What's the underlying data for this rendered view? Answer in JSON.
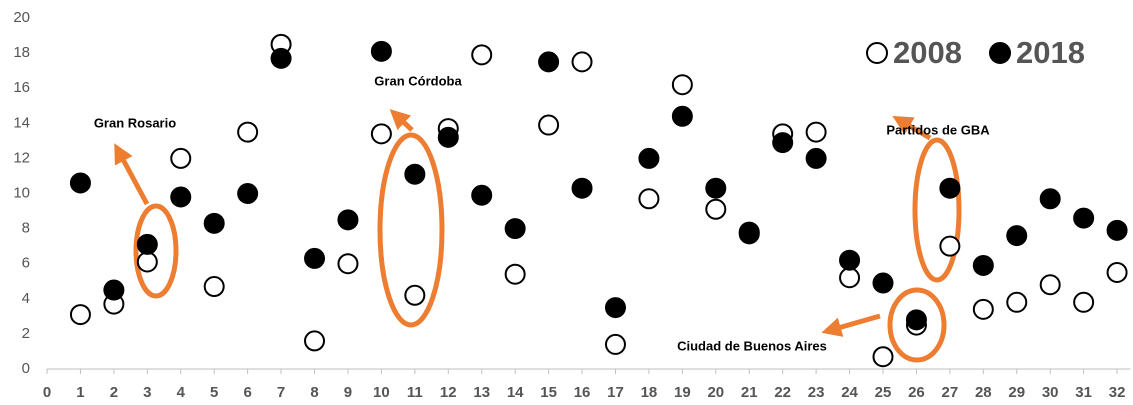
{
  "chart_data": {
    "type": "scatter",
    "x": [
      1,
      2,
      3,
      4,
      5,
      6,
      7,
      8,
      9,
      10,
      11,
      12,
      13,
      14,
      15,
      16,
      17,
      18,
      19,
      20,
      21,
      22,
      23,
      24,
      25,
      26,
      27,
      28,
      29,
      30,
      31,
      32
    ],
    "series": [
      {
        "name": "2008",
        "color": "#000000",
        "marker": "open",
        "values": [
          3.1,
          3.7,
          6.1,
          12.0,
          4.7,
          13.5,
          18.5,
          1.6,
          6.0,
          13.4,
          4.2,
          13.7,
          17.9,
          5.4,
          13.9,
          17.5,
          1.4,
          9.7,
          16.2,
          9.1,
          7.7,
          13.4,
          13.5,
          5.2,
          0.7,
          2.5,
          7.0,
          3.4,
          3.8,
          4.8,
          3.8,
          5.5
        ]
      },
      {
        "name": "2018",
        "color": "#000000",
        "marker": "filled",
        "values": [
          10.6,
          4.5,
          7.1,
          9.8,
          8.3,
          10.0,
          17.7,
          6.3,
          8.5,
          18.1,
          11.1,
          13.2,
          9.9,
          8.0,
          17.5,
          10.3,
          3.5,
          12.0,
          14.4,
          10.3,
          7.8,
          12.9,
          12.0,
          6.2,
          4.9,
          2.8,
          10.3,
          5.9,
          7.6,
          9.7,
          8.6,
          7.9
        ]
      }
    ],
    "xlim": [
      0,
      32.4
    ],
    "xticks": [
      0,
      1,
      2,
      3,
      4,
      5,
      6,
      7,
      8,
      9,
      10,
      11,
      12,
      13,
      14,
      15,
      16,
      17,
      18,
      19,
      20,
      21,
      22,
      23,
      24,
      25,
      26,
      27,
      28,
      29,
      30,
      31,
      32
    ],
    "ylim": [
      0,
      20
    ],
    "yticks": [
      0,
      2,
      4,
      6,
      8,
      10,
      12,
      14,
      16,
      18,
      20
    ],
    "grid": false,
    "legend": "upper right",
    "annotations": [
      "Gran Rosario",
      "Gran Córdoba",
      "Partidos de GBA",
      "Ciudad de Buenos Aires"
    ]
  }
}
